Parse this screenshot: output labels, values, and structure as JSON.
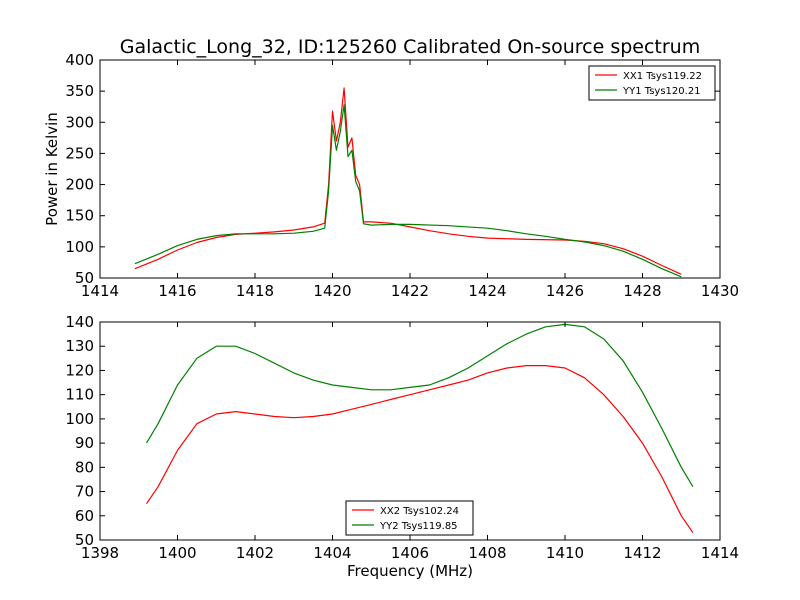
{
  "title": "Galactic_Long_32, ID:125260 Calibrated On-source spectrum",
  "chart_data": [
    {
      "type": "line",
      "xlabel": "",
      "ylabel": "Power in Kelvin",
      "xlim": [
        1414,
        1430
      ],
      "ylim": [
        50,
        400
      ],
      "xticks": [
        1414,
        1416,
        1418,
        1420,
        1422,
        1424,
        1426,
        1428,
        1430
      ],
      "yticks": [
        50,
        100,
        150,
        200,
        250,
        300,
        350,
        400
      ],
      "legend_position": "upper-right",
      "series": [
        {
          "name": "XX1 Tsys119.22",
          "color": "#ff0000",
          "points": [
            [
              1414.9,
              65
            ],
            [
              1415.5,
              80
            ],
            [
              1416,
              95
            ],
            [
              1416.5,
              107
            ],
            [
              1417,
              115
            ],
            [
              1417.5,
              120
            ],
            [
              1418,
              122
            ],
            [
              1418.5,
              124
            ],
            [
              1419,
              127
            ],
            [
              1419.5,
              132
            ],
            [
              1419.8,
              138
            ],
            [
              1419.9,
              200
            ],
            [
              1420.0,
              318
            ],
            [
              1420.1,
              270
            ],
            [
              1420.2,
              300
            ],
            [
              1420.3,
              355
            ],
            [
              1420.4,
              260
            ],
            [
              1420.5,
              275
            ],
            [
              1420.6,
              215
            ],
            [
              1420.7,
              200
            ],
            [
              1420.8,
              140
            ],
            [
              1421,
              140
            ],
            [
              1421.5,
              138
            ],
            [
              1422,
              132
            ],
            [
              1422.5,
              126
            ],
            [
              1423,
              121
            ],
            [
              1423.5,
              117
            ],
            [
              1424,
              114
            ],
            [
              1425,
              112
            ],
            [
              1426,
              111
            ],
            [
              1426.5,
              109
            ],
            [
              1427,
              105
            ],
            [
              1427.5,
              97
            ],
            [
              1428,
              85
            ],
            [
              1428.5,
              70
            ],
            [
              1429,
              56
            ]
          ]
        },
        {
          "name": "YY1 Tsys120.21",
          "color": "#008000",
          "points": [
            [
              1414.9,
              73
            ],
            [
              1415.5,
              88
            ],
            [
              1416,
              102
            ],
            [
              1416.5,
              112
            ],
            [
              1417,
              118
            ],
            [
              1417.5,
              121
            ],
            [
              1418,
              121
            ],
            [
              1418.5,
              121
            ],
            [
              1419,
              122
            ],
            [
              1419.5,
              125
            ],
            [
              1419.8,
              130
            ],
            [
              1419.9,
              190
            ],
            [
              1420.0,
              295
            ],
            [
              1420.1,
              255
            ],
            [
              1420.2,
              285
            ],
            [
              1420.3,
              328
            ],
            [
              1420.4,
              245
            ],
            [
              1420.5,
              255
            ],
            [
              1420.6,
              205
            ],
            [
              1420.7,
              190
            ],
            [
              1420.8,
              137
            ],
            [
              1421,
              135
            ],
            [
              1421.5,
              136
            ],
            [
              1422,
              136
            ],
            [
              1423,
              134
            ],
            [
              1424,
              130
            ],
            [
              1424.5,
              126
            ],
            [
              1425,
              121
            ],
            [
              1425.5,
              117
            ],
            [
              1426,
              112
            ],
            [
              1426.5,
              108
            ],
            [
              1427,
              102
            ],
            [
              1427.5,
              93
            ],
            [
              1428,
              80
            ],
            [
              1428.5,
              65
            ],
            [
              1429,
              52
            ]
          ]
        }
      ]
    },
    {
      "type": "line",
      "xlabel": "Frequency (MHz)",
      "ylabel": "",
      "xlim": [
        1398,
        1414
      ],
      "ylim": [
        50,
        140
      ],
      "xticks": [
        1398,
        1400,
        1402,
        1404,
        1406,
        1408,
        1410,
        1412,
        1414
      ],
      "yticks": [
        50,
        60,
        70,
        80,
        90,
        100,
        110,
        120,
        130,
        140
      ],
      "legend_position": "lower-center",
      "series": [
        {
          "name": "XX2 Tsys102.24",
          "color": "#ff0000",
          "points": [
            [
              1399.2,
              65
            ],
            [
              1399.5,
              72
            ],
            [
              1400,
              87
            ],
            [
              1400.5,
              98
            ],
            [
              1401,
              102
            ],
            [
              1401.5,
              103
            ],
            [
              1402,
              102
            ],
            [
              1402.5,
              101
            ],
            [
              1403,
              100.5
            ],
            [
              1403.5,
              101
            ],
            [
              1404,
              102
            ],
            [
              1404.5,
              104
            ],
            [
              1405,
              106
            ],
            [
              1405.5,
              108
            ],
            [
              1406,
              110
            ],
            [
              1406.5,
              112
            ],
            [
              1407,
              114
            ],
            [
              1407.5,
              116
            ],
            [
              1408,
              119
            ],
            [
              1408.5,
              121
            ],
            [
              1409,
              122
            ],
            [
              1409.5,
              122
            ],
            [
              1410,
              121
            ],
            [
              1410.5,
              117
            ],
            [
              1411,
              110
            ],
            [
              1411.5,
              101
            ],
            [
              1412,
              90
            ],
            [
              1412.5,
              76
            ],
            [
              1413,
              60
            ],
            [
              1413.3,
              53
            ]
          ]
        },
        {
          "name": "YY2 Tsys119.85",
          "color": "#008000",
          "points": [
            [
              1399.2,
              90
            ],
            [
              1399.5,
              98
            ],
            [
              1400,
              114
            ],
            [
              1400.5,
              125
            ],
            [
              1401,
              130
            ],
            [
              1401.5,
              130
            ],
            [
              1402,
              127
            ],
            [
              1402.5,
              123
            ],
            [
              1403,
              119
            ],
            [
              1403.5,
              116
            ],
            [
              1404,
              114
            ],
            [
              1404.5,
              113
            ],
            [
              1405,
              112
            ],
            [
              1405.5,
              112
            ],
            [
              1406,
              113
            ],
            [
              1406.5,
              114
            ],
            [
              1407,
              117
            ],
            [
              1407.5,
              121
            ],
            [
              1408,
              126
            ],
            [
              1408.5,
              131
            ],
            [
              1409,
              135
            ],
            [
              1409.5,
              138
            ],
            [
              1410,
              139
            ],
            [
              1410.5,
              138
            ],
            [
              1411,
              133
            ],
            [
              1411.5,
              124
            ],
            [
              1412,
              111
            ],
            [
              1412.5,
              96
            ],
            [
              1413,
              80
            ],
            [
              1413.3,
              72
            ]
          ]
        }
      ]
    }
  ]
}
